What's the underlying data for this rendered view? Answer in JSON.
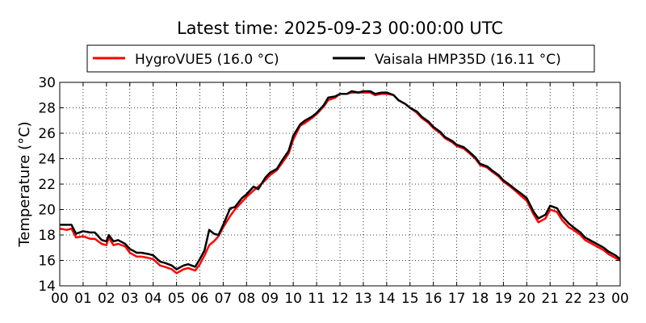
{
  "chart_data": {
    "type": "line",
    "title": "Latest time: 2025-09-23 00:00:00 UTC",
    "xlabel": "",
    "ylabel": "Temperature (°C)",
    "xlim": [
      0,
      24
    ],
    "ylim": [
      14,
      30
    ],
    "x_ticks": [
      "00",
      "01",
      "02",
      "03",
      "04",
      "05",
      "06",
      "07",
      "08",
      "09",
      "10",
      "11",
      "12",
      "13",
      "14",
      "15",
      "16",
      "17",
      "18",
      "19",
      "20",
      "21",
      "22",
      "23",
      "00"
    ],
    "y_ticks": [
      14,
      16,
      18,
      20,
      22,
      24,
      26,
      28,
      30
    ],
    "grid": true,
    "legend_position": "top",
    "series": [
      {
        "name": "HygroVUE5 (16.0 °C)",
        "color": "#ff0000",
        "x": [
          0,
          0.3,
          0.5,
          0.7,
          1.0,
          1.3,
          1.5,
          1.8,
          2.0,
          2.1,
          2.3,
          2.5,
          2.8,
          3.0,
          3.3,
          3.5,
          3.8,
          4.0,
          4.3,
          4.5,
          4.8,
          5.0,
          5.3,
          5.5,
          5.8,
          6.0,
          6.2,
          6.4,
          6.6,
          6.8,
          7.0,
          7.3,
          7.5,
          7.8,
          8.0,
          8.3,
          8.5,
          8.8,
          9.0,
          9.3,
          9.5,
          9.8,
          10.0,
          10.3,
          10.5,
          10.8,
          11.0,
          11.3,
          11.5,
          11.8,
          12.0,
          12.3,
          12.5,
          12.8,
          13.0,
          13.3,
          13.5,
          13.8,
          14.0,
          14.3,
          14.5,
          14.8,
          15.0,
          15.3,
          15.5,
          15.8,
          16.0,
          16.3,
          16.5,
          16.8,
          17.0,
          17.3,
          17.5,
          17.8,
          18.0,
          18.3,
          18.5,
          18.8,
          19.0,
          19.3,
          19.5,
          19.8,
          20.0,
          20.3,
          20.5,
          20.8,
          21.0,
          21.3,
          21.5,
          21.8,
          22.0,
          22.3,
          22.5,
          22.8,
          23.0,
          23.3,
          23.5,
          23.8,
          24.0
        ],
        "values": [
          18.5,
          18.4,
          18.5,
          17.8,
          17.9,
          17.7,
          17.7,
          17.3,
          17.2,
          17.8,
          17.2,
          17.3,
          17.1,
          16.6,
          16.3,
          16.3,
          16.2,
          16.1,
          15.6,
          15.5,
          15.3,
          15.0,
          15.3,
          15.4,
          15.2,
          15.7,
          16.4,
          17.2,
          17.5,
          17.9,
          18.6,
          19.5,
          20.0,
          20.6,
          21.0,
          21.5,
          21.8,
          22.3,
          22.7,
          23.1,
          23.6,
          24.4,
          25.5,
          26.6,
          26.8,
          27.2,
          27.5,
          28.1,
          28.6,
          28.8,
          29.1,
          29.1,
          29.2,
          29.2,
          29.2,
          29.2,
          29.0,
          29.1,
          29.1,
          29.0,
          28.6,
          28.3,
          28.0,
          27.6,
          27.2,
          26.8,
          26.4,
          26.0,
          25.6,
          25.3,
          25.0,
          24.8,
          24.5,
          24.0,
          23.5,
          23.3,
          23.0,
          22.6,
          22.2,
          21.8,
          21.5,
          21.0,
          20.7,
          19.6,
          19.0,
          19.3,
          20.0,
          19.8,
          19.2,
          18.6,
          18.4,
          18.0,
          17.6,
          17.3,
          17.1,
          16.8,
          16.5,
          16.2,
          16.0
        ]
      },
      {
        "name": "Vaisala HMP35D (16.11 °C)",
        "color": "#000000",
        "x": [
          0,
          0.3,
          0.5,
          0.7,
          1.0,
          1.3,
          1.5,
          1.8,
          2.0,
          2.1,
          2.3,
          2.5,
          2.8,
          3.0,
          3.3,
          3.5,
          3.8,
          4.0,
          4.3,
          4.5,
          4.8,
          5.0,
          5.3,
          5.5,
          5.8,
          6.0,
          6.2,
          6.4,
          6.6,
          6.8,
          7.0,
          7.3,
          7.5,
          7.8,
          8.0,
          8.3,
          8.5,
          8.8,
          9.0,
          9.3,
          9.5,
          9.8,
          10.0,
          10.3,
          10.5,
          10.8,
          11.0,
          11.3,
          11.5,
          11.8,
          12.0,
          12.3,
          12.5,
          12.8,
          13.0,
          13.3,
          13.5,
          13.8,
          14.0,
          14.3,
          14.5,
          14.8,
          15.0,
          15.3,
          15.5,
          15.8,
          16.0,
          16.3,
          16.5,
          16.8,
          17.0,
          17.3,
          17.5,
          17.8,
          18.0,
          18.3,
          18.5,
          18.8,
          19.0,
          19.3,
          19.5,
          19.8,
          20.0,
          20.3,
          20.5,
          20.8,
          21.0,
          21.3,
          21.5,
          21.8,
          22.0,
          22.3,
          22.5,
          22.8,
          23.0,
          23.3,
          23.5,
          23.8,
          24.0
        ],
        "values": [
          18.8,
          18.8,
          18.8,
          18.1,
          18.3,
          18.2,
          18.2,
          17.6,
          17.5,
          18.0,
          17.5,
          17.6,
          17.3,
          16.9,
          16.6,
          16.6,
          16.5,
          16.4,
          15.9,
          15.8,
          15.6,
          15.3,
          15.6,
          15.7,
          15.5,
          16.1,
          16.8,
          18.4,
          18.1,
          18.0,
          18.8,
          20.1,
          20.2,
          20.9,
          21.2,
          21.8,
          21.6,
          22.5,
          22.9,
          23.2,
          23.8,
          24.6,
          25.8,
          26.7,
          27.0,
          27.3,
          27.6,
          28.2,
          28.8,
          28.9,
          29.1,
          29.1,
          29.3,
          29.2,
          29.3,
          29.3,
          29.1,
          29.2,
          29.2,
          29.0,
          28.6,
          28.3,
          28.0,
          27.7,
          27.3,
          26.9,
          26.5,
          26.1,
          25.7,
          25.4,
          25.1,
          24.9,
          24.6,
          24.1,
          23.6,
          23.4,
          23.1,
          22.7,
          22.3,
          21.9,
          21.6,
          21.2,
          20.9,
          19.8,
          19.3,
          19.6,
          20.3,
          20.1,
          19.5,
          18.9,
          18.6,
          18.2,
          17.8,
          17.5,
          17.3,
          17.0,
          16.7,
          16.4,
          16.1
        ]
      }
    ]
  }
}
